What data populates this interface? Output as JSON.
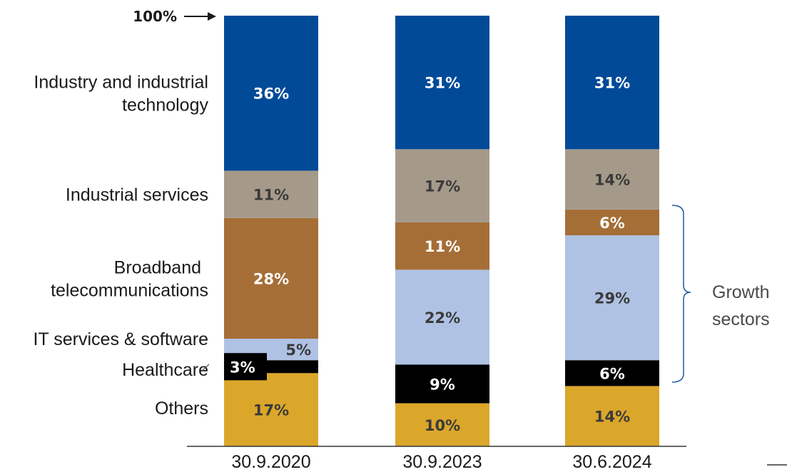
{
  "chart_data": {
    "type": "bar",
    "stacked": true,
    "categories": [
      "30.9.2020",
      "30.9.2023",
      "30.6.2024"
    ],
    "ylim": [
      0,
      100
    ],
    "top_marker": "100%",
    "series": [
      {
        "name": "Others",
        "color": "#DBA72A",
        "values": [
          17,
          10,
          14
        ],
        "labels": [
          "17%",
          "10%",
          "14%"
        ]
      },
      {
        "name": "Healthcare",
        "color": "#000000",
        "values": [
          3,
          9,
          6
        ],
        "labels": [
          "3%",
          "9%",
          "6%"
        ]
      },
      {
        "name": "IT services & software",
        "color": "#AFC2E3",
        "values": [
          5,
          22,
          29
        ],
        "labels": [
          "5%",
          "22%",
          "29%"
        ]
      },
      {
        "name": "Broadband telecommunications",
        "color": "#A56E37",
        "values": [
          28,
          11,
          6
        ],
        "labels": [
          "28%",
          "11%",
          "6%"
        ]
      },
      {
        "name": "Industrial services",
        "color": "#A59A8A",
        "values": [
          11,
          17,
          14
        ],
        "labels": [
          "11%",
          "17%",
          "14%"
        ]
      },
      {
        "name": "Industry and industrial technology",
        "color": "#004A98",
        "values": [
          36,
          31,
          31
        ],
        "labels": [
          "36%",
          "31%",
          "31%"
        ]
      }
    ],
    "annotation": {
      "text_lines": [
        "Growth",
        "sectors"
      ],
      "bracket_color": "#1F5A9E"
    }
  }
}
